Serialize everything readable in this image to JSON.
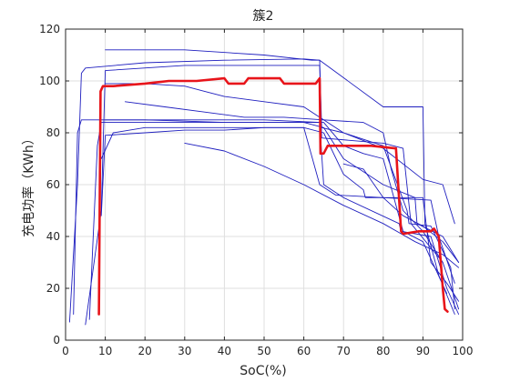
{
  "chart_data": {
    "type": "line",
    "title": "簇2",
    "xlabel": "SoC(%)",
    "ylabel": "充电功率（KWh）",
    "xlim": [
      0,
      100
    ],
    "ylim": [
      0,
      120
    ],
    "xticks": [
      0,
      10,
      20,
      30,
      40,
      50,
      60,
      70,
      80,
      90,
      100
    ],
    "yticks": [
      0,
      20,
      40,
      60,
      80,
      100,
      120
    ],
    "grid": true,
    "legend": "none",
    "colors": {
      "cluster": "#1f1fbf",
      "center": "#e8141a",
      "grid": "#dfdfdf",
      "axis": "#262626"
    },
    "series": [
      {
        "color": "#1f1fbf",
        "x": [
          1,
          3,
          4,
          5,
          20,
          40,
          60,
          64,
          64.5,
          70,
          80,
          86,
          86.5,
          92,
          97,
          98
        ],
        "y": [
          7,
          60,
          103,
          105,
          107,
          108,
          108.5,
          108,
          82,
          80,
          75,
          50,
          45,
          44,
          28,
          12
        ]
      },
      {
        "color": "#1f1fbf",
        "x": [
          5,
          9,
          10,
          30,
          50,
          64,
          64.5,
          80,
          85,
          87,
          95,
          99
        ],
        "y": [
          6,
          50,
          104,
          106,
          106,
          106,
          78,
          76,
          74,
          45,
          30,
          12
        ]
      },
      {
        "color": "#1f1fbf",
        "x": [
          2,
          3,
          4,
          10,
          30,
          50,
          64,
          65,
          70,
          84,
          84.5,
          92,
          96,
          99
        ],
        "y": [
          10,
          80,
          85,
          85,
          85,
          85,
          84,
          60,
          55,
          45,
          42,
          40,
          20,
          10
        ]
      },
      {
        "color": "#1f1fbf",
        "x": [
          6,
          8,
          9,
          20,
          40,
          60,
          65,
          70,
          80,
          88,
          88.5,
          95,
          99
        ],
        "y": [
          8,
          75,
          84,
          84,
          84,
          84,
          82,
          70,
          60,
          55,
          45,
          40,
          30
        ]
      },
      {
        "color": "#1f1fbf",
        "x": [
          9,
          12,
          20,
          30,
          40,
          50,
          60,
          65,
          70,
          75,
          75.5,
          90,
          92,
          96,
          99
        ],
        "y": [
          70,
          80,
          82,
          82,
          82,
          82,
          82,
          80,
          64,
          58,
          55,
          55,
          30,
          22,
          15
        ]
      },
      {
        "color": "#1f1fbf",
        "x": [
          9,
          10,
          20,
          30,
          40,
          50,
          60,
          64,
          68,
          80,
          92,
          94,
          98
        ],
        "y": [
          48,
          79,
          80,
          81,
          81,
          82,
          82,
          60,
          56,
          55,
          54,
          40,
          22
        ]
      },
      {
        "color": "#1f1fbf",
        "x": [
          30,
          40,
          50,
          60,
          70,
          80,
          88,
          95,
          99
        ],
        "y": [
          76,
          73,
          67,
          60,
          52,
          45,
          38,
          33,
          28
        ]
      },
      {
        "color": "#1f1fbf",
        "x": [
          10,
          30,
          50,
          62,
          64,
          80,
          90,
          90.5,
          94,
          98
        ],
        "y": [
          112,
          112,
          110,
          108,
          108,
          90,
          90,
          45,
          25,
          10
        ]
      },
      {
        "color": "#1f1fbf",
        "x": [
          10,
          20,
          30,
          35,
          40,
          50,
          60,
          65,
          70,
          80,
          90,
          95,
          98
        ],
        "y": [
          99,
          99,
          98,
          96,
          94,
          92,
          90,
          85,
          80,
          74,
          62,
          60,
          45
        ]
      },
      {
        "color": "#1f1fbf",
        "x": [
          15,
          25,
          35,
          45,
          55,
          65,
          75,
          80,
          82,
          85,
          90,
          95
        ],
        "y": [
          92,
          90,
          88,
          86,
          86,
          85,
          84,
          80,
          66,
          50,
          42,
          30
        ]
      },
      {
        "color": "#1f1fbf",
        "x": [
          70,
          75,
          80,
          85,
          90,
          95,
          99
        ],
        "y": [
          68,
          66,
          55,
          48,
          44,
          38,
          30
        ]
      },
      {
        "color": "#1f1fbf",
        "x": [
          10,
          20,
          40,
          60,
          65,
          70,
          75,
          80,
          85,
          90,
          96
        ],
        "y": [
          85,
          85,
          84,
          84,
          84,
          75,
          72,
          70,
          42,
          38,
          18
        ]
      },
      {
        "color": "#e8141a",
        "x": [
          8.4,
          8.8,
          9.4,
          12,
          20,
          26,
          33,
          40,
          41,
          45,
          46,
          48,
          49,
          54,
          55,
          58,
          63,
          64,
          64.2,
          65,
          66,
          67,
          77,
          83,
          83.2,
          84.5,
          85,
          89,
          92,
          92.8,
          94,
          95,
          95.5,
          96.2
        ],
        "y": [
          10,
          96,
          98,
          98,
          99,
          100,
          100,
          101,
          99,
          99,
          101,
          101,
          101,
          101,
          99,
          99,
          99,
          101,
          72,
          72,
          75,
          75,
          75,
          74,
          74,
          42,
          41,
          42,
          42,
          43,
          40,
          20,
          12,
          11
        ]
      }
    ]
  }
}
